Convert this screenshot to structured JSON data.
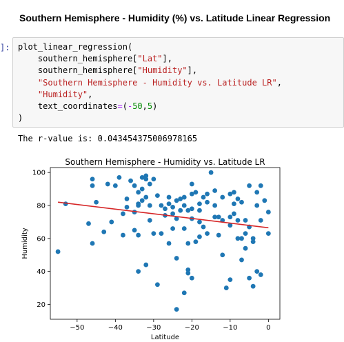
{
  "markdown": {
    "heading": "Southern Hemisphere - Humidity (%) vs. Latitude Linear Regression"
  },
  "cell": {
    "prompt": "]:",
    "code": {
      "line1_func": "plot_linear_regression(",
      "line2_pre": "southern_hemisphere[",
      "line2_str": "\"Lat\"",
      "line2_post": "],",
      "line3_pre": "southern_hemisphere[",
      "line3_str": "\"Humidity\"",
      "line3_post": "],",
      "line4_str": "\"Southern Hemisphere - Humidity vs. Latitude LR\"",
      "line4_post": ",",
      "line5_str": "\"Humidity\"",
      "line5_post": ",",
      "line6_pre": "text_coordinates",
      "line6_eq": "=",
      "line6_open": "(",
      "line6_minus": "-",
      "line6_num1": "50",
      "line6_comma": ",",
      "line6_num2": "5",
      "line6_close": ")",
      "line7": ")"
    },
    "output_text": "The r-value is: 0.043454375006978165"
  },
  "chart_data": {
    "type": "scatter",
    "title": "Southern Hemisphere - Humidity vs. Latitude LR",
    "xlabel": "Latitude",
    "ylabel": "Humidity",
    "xlim": [
      -57,
      3
    ],
    "ylim": [
      11,
      103
    ],
    "xticks": [
      -50,
      -40,
      -30,
      -20,
      -10,
      0
    ],
    "yticks": [
      20,
      40,
      60,
      80,
      100
    ],
    "point_color": "#1f77b4",
    "line_color": "#d62728",
    "regression": {
      "x": [
        -55,
        0
      ],
      "y": [
        82,
        66.5
      ]
    },
    "points": [
      [
        -55,
        52
      ],
      [
        -53,
        81
      ],
      [
        -47,
        69
      ],
      [
        -46,
        57
      ],
      [
        -46,
        92
      ],
      [
        -46,
        96
      ],
      [
        -45,
        82
      ],
      [
        -43,
        64
      ],
      [
        -42,
        93
      ],
      [
        -41,
        70
      ],
      [
        -40,
        92
      ],
      [
        -39,
        97
      ],
      [
        -38,
        62
      ],
      [
        -38,
        75
      ],
      [
        -37,
        84
      ],
      [
        -37,
        79
      ],
      [
        -36,
        95
      ],
      [
        -35,
        65
      ],
      [
        -35,
        92
      ],
      [
        -35,
        76
      ],
      [
        -34,
        88
      ],
      [
        -34,
        80
      ],
      [
        -34,
        62
      ],
      [
        -34,
        81
      ],
      [
        -33,
        97
      ],
      [
        -33,
        90
      ],
      [
        -33,
        83
      ],
      [
        -32,
        98
      ],
      [
        -32,
        96
      ],
      [
        -32,
        85
      ],
      [
        -31,
        71
      ],
      [
        -31,
        80
      ],
      [
        -31,
        93
      ],
      [
        -30,
        63
      ],
      [
        -30,
        96
      ],
      [
        -29,
        86
      ],
      [
        -28,
        80
      ],
      [
        -28,
        63
      ],
      [
        -27,
        78
      ],
      [
        -27,
        74
      ],
      [
        -26,
        81
      ],
      [
        -26,
        57
      ],
      [
        -25,
        75
      ],
      [
        -25,
        66
      ],
      [
        -25,
        79
      ],
      [
        -24,
        83
      ],
      [
        -24,
        72
      ],
      [
        -23,
        77
      ],
      [
        -23,
        84
      ],
      [
        -22,
        80
      ],
      [
        -22,
        85
      ],
      [
        -22,
        66
      ],
      [
        -21,
        77
      ],
      [
        -21,
        57
      ],
      [
        -21,
        41
      ],
      [
        -21,
        39
      ],
      [
        -20,
        93
      ],
      [
        -20,
        87
      ],
      [
        -20,
        78
      ],
      [
        -20,
        72
      ],
      [
        -20,
        36
      ],
      [
        -19,
        88
      ],
      [
        -19,
        58
      ],
      [
        -18,
        81
      ],
      [
        -18,
        77
      ],
      [
        -18,
        61
      ],
      [
        -17,
        85
      ],
      [
        -17,
        67
      ],
      [
        -16,
        82
      ],
      [
        -16,
        63
      ],
      [
        -15,
        100
      ],
      [
        -14,
        89
      ],
      [
        -14,
        80
      ],
      [
        -14,
        73
      ],
      [
        -13,
        73
      ],
      [
        -13,
        62
      ],
      [
        -12,
        71
      ],
      [
        -12,
        50
      ],
      [
        -11,
        30
      ],
      [
        -10,
        87
      ],
      [
        -10,
        73
      ],
      [
        -10,
        68
      ],
      [
        -9,
        88
      ],
      [
        -9,
        81
      ],
      [
        -9,
        75
      ],
      [
        -8,
        84
      ],
      [
        -8,
        71
      ],
      [
        -7,
        82
      ],
      [
        -7,
        60
      ],
      [
        -7,
        47
      ],
      [
        -6,
        71
      ],
      [
        -6,
        54
      ],
      [
        -5,
        92
      ],
      [
        -5,
        67
      ],
      [
        -5,
        36
      ],
      [
        -4,
        31
      ],
      [
        -4,
        58
      ],
      [
        -3,
        80
      ],
      [
        -3,
        88
      ],
      [
        -2,
        92
      ],
      [
        -2,
        71
      ],
      [
        -2,
        38
      ],
      [
        -1,
        83
      ],
      [
        0,
        76
      ],
      [
        0,
        63
      ],
      [
        -24,
        17
      ],
      [
        -29,
        32
      ],
      [
        -34,
        40
      ],
      [
        -22,
        27
      ],
      [
        -24,
        48
      ],
      [
        -8,
        60
      ],
      [
        -4,
        60
      ],
      [
        -32,
        44
      ],
      [
        -10,
        35
      ],
      [
        -26,
        85
      ],
      [
        -18,
        70
      ],
      [
        -12,
        85
      ],
      [
        -3,
        40
      ],
      [
        -6,
        63
      ],
      [
        -16,
        87
      ]
    ]
  }
}
